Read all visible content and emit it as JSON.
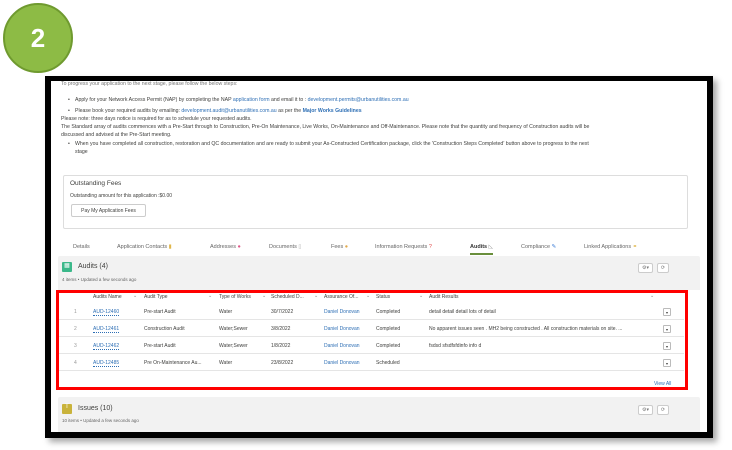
{
  "step_badge": "2",
  "intro": {
    "lead": "To progress your application to the next stage, please follow the below steps:",
    "bullet1_pre": "Apply for your Network Access Permit (NAP) by completing the NAP ",
    "bullet1_link": "application form",
    "bullet1_mid": " and email it to : ",
    "bullet1_email": "development.permits@urbanutilities.com.au",
    "bullet2_pre": "Please book your required audits by emailing: ",
    "bullet2_email": "development.audit@urbanutilities.com.au",
    "bullet2_mid": " as per the ",
    "bullet2_link": "Major Works Guidelines",
    "note": "Please note: three days notice is required for as to schedule your requested audits.",
    "standard1": "The Standard array of audits commences with a Pre-Start through to Construction, Pre-On Maintenance, Live Works, On-Maintenance and Off-Maintenance. Please note that the quantity and frequency of Construction audits will be",
    "standard2": "discussed and advised at the Pre-Start meeting.",
    "bullet3": "When you have completed all construction, restoration and QC documentation and are ready to submit your As-Constructed Certification package, click the 'Construction Steps Completed' button above to progress to the next",
    "bullet3b": "stage"
  },
  "fees": {
    "title": "Outstanding Fees",
    "amount_text": "Outstanding amount for this application :$0.00",
    "pay_button": "Pay My Application Fees"
  },
  "tabs": [
    {
      "label": "Details",
      "icon": ""
    },
    {
      "label": "Application Contacts",
      "icon": "person-icon"
    },
    {
      "label": "Addresses",
      "icon": "map-pin-icon"
    },
    {
      "label": "Documents",
      "icon": "document-icon"
    },
    {
      "label": "Fees",
      "icon": "money-bag-icon"
    },
    {
      "label": "Information Requests",
      "icon": "question-icon"
    },
    {
      "label": "Audits",
      "icon": "ruler-icon",
      "active": true
    },
    {
      "label": "Compliance",
      "icon": "pencil-icon"
    },
    {
      "label": "Linked Applications",
      "icon": "link-icon"
    }
  ],
  "audits": {
    "title": "Audits (4)",
    "subtitle": "4 items • Updated a few seconds ago",
    "columns": [
      "Audits Name",
      "Audit Type",
      "Type of Works",
      "Scheduled D...",
      "Assurance Of...",
      "Status",
      "Audit Results"
    ],
    "rows": [
      {
        "n": "1",
        "name": "AUD-12460",
        "type": "Pre-start Audit",
        "works": "Water",
        "date": "30/7/2022",
        "officer": "Daniel Donovan",
        "status": "Completed",
        "results": "detail detail detail lots of detail"
      },
      {
        "n": "2",
        "name": "AUD-12461",
        "type": "Construction Audit",
        "works": "Water;Sewer",
        "date": "3/8/2022",
        "officer": "Daniel Donovan",
        "status": "Completed",
        "results": "No apparent issues seen . MH2 being constructed . All construction materials on site. ..."
      },
      {
        "n": "3",
        "name": "AUD-12462",
        "type": "Pre-start Audit",
        "works": "Water;Sewer",
        "date": "1/8/2022",
        "officer": "Daniel Donovan",
        "status": "Completed",
        "results": "fsdsd sfsdfsfdinfo info d"
      },
      {
        "n": "4",
        "name": "AUD-12485",
        "type": "Pre On-Maintenance Au...",
        "works": "Water",
        "date": "23/8/2022",
        "officer": "Daniel Donovan",
        "status": "Scheduled",
        "results": ""
      }
    ],
    "view_all": "View All"
  },
  "issues": {
    "title": "Issues (10)",
    "subtitle": "10 items • Updated a few seconds ago"
  },
  "colors": {
    "badge": "#8dbb45",
    "highlight": "#ff0000",
    "link": "#2e6fb5",
    "active_tab": "#6a8f3c",
    "audits_icon": "#3bb88a",
    "issues_icon": "#c9b33b"
  }
}
